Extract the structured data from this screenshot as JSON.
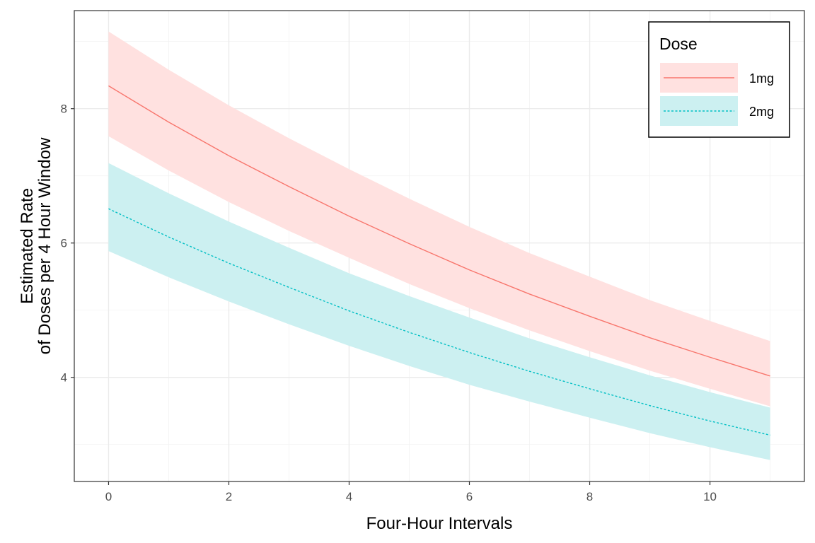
{
  "chart_data": {
    "type": "line",
    "title": "",
    "xlabel": "Four-Hour Intervals",
    "ylabel_lines": [
      "Estimated Rate",
      "of Doses per 4 Hour Window"
    ],
    "xlim": [
      -0.57,
      11.57
    ],
    "ylim": [
      2.45,
      9.46
    ],
    "xticks": [
      0,
      2,
      4,
      6,
      8,
      10
    ],
    "yticks": [
      4,
      6,
      8
    ],
    "grid": true,
    "legend": {
      "title": "Dose",
      "position": "top-right"
    },
    "x": [
      0,
      1,
      2,
      3,
      4,
      5,
      6,
      7,
      8,
      9,
      10,
      11
    ],
    "series": [
      {
        "name": "1mg",
        "color": "#F8766D",
        "fill": "#FFE1E0",
        "dash": "solid",
        "values": [
          8.34,
          7.8,
          7.3,
          6.84,
          6.4,
          5.99,
          5.6,
          5.24,
          4.91,
          4.59,
          4.3,
          4.02
        ],
        "upper": [
          9.15,
          8.58,
          8.05,
          7.56,
          7.1,
          6.66,
          6.24,
          5.85,
          5.5,
          5.15,
          4.84,
          4.54
        ],
        "lower": [
          7.59,
          7.08,
          6.61,
          6.18,
          5.78,
          5.39,
          5.03,
          4.7,
          4.39,
          4.1,
          3.83,
          3.57
        ]
      },
      {
        "name": "2mg",
        "color": "#00BFC4",
        "fill": "#CCF0F1",
        "dash": "dotted",
        "values": [
          6.51,
          6.09,
          5.7,
          5.34,
          4.99,
          4.67,
          4.37,
          4.09,
          3.83,
          3.58,
          3.35,
          3.14
        ],
        "upper": [
          7.19,
          6.74,
          6.32,
          5.93,
          5.55,
          5.21,
          4.89,
          4.58,
          4.3,
          4.03,
          3.78,
          3.55
        ],
        "lower": [
          5.88,
          5.49,
          5.13,
          4.79,
          4.47,
          4.17,
          3.89,
          3.64,
          3.4,
          3.17,
          2.96,
          2.77
        ]
      }
    ]
  }
}
